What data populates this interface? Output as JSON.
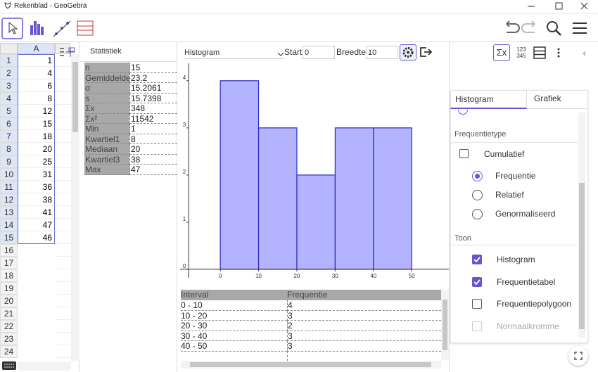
{
  "window": {
    "title": "Rekenblad - GeoGebra"
  },
  "spreadsheet": {
    "column": "A",
    "row_numbers": [
      1,
      2,
      3,
      4,
      5,
      6,
      7,
      8,
      9,
      10,
      11,
      12,
      13,
      14,
      15,
      16,
      17,
      18,
      19,
      20,
      21,
      22,
      23,
      24
    ],
    "values": [
      1,
      4,
      6,
      8,
      12,
      15,
      18,
      20,
      25,
      31,
      36,
      38,
      41,
      47,
      46
    ]
  },
  "statistics": {
    "title": "Statistiek",
    "rows": [
      [
        "n",
        15
      ],
      [
        "Gemiddelde",
        23.2
      ],
      [
        "σ",
        15.2061
      ],
      [
        "s",
        15.7398
      ],
      [
        "Σx",
        348
      ],
      [
        "Σx²",
        11542
      ],
      [
        "Min",
        1
      ],
      [
        "Kwartiel1",
        8
      ],
      [
        "Mediaan",
        20
      ],
      [
        "Kwartiel3",
        38
      ],
      [
        "Max",
        47
      ]
    ]
  },
  "toolbar": {
    "plot_type": "Histogram",
    "start_label": "Start",
    "start": 0,
    "width_label": "Breedte",
    "width": 10
  },
  "chart_data": {
    "type": "histogram",
    "bins": [
      0,
      10,
      20,
      30,
      40,
      50
    ],
    "values": [
      4,
      3,
      2,
      3,
      3
    ],
    "color": "#b3b3ff",
    "edge_color": "#2b2bc4",
    "xlim": [
      -10.5,
      59.7
    ],
    "ylim": [
      -0.18,
      4.37
    ],
    "xticks": [
      0,
      10,
      20,
      30,
      40,
      50
    ],
    "yticks": [
      0,
      1,
      2,
      3,
      4
    ]
  },
  "frequency_table": {
    "headers": [
      "Interval",
      "Frequentie"
    ],
    "rows": [
      [
        "0 - 10",
        4
      ],
      [
        "10 - 20",
        3
      ],
      [
        "20 - 30",
        2
      ],
      [
        "30 - 40",
        3
      ],
      [
        "40 - 50",
        3
      ]
    ]
  },
  "settings": {
    "tabs": [
      "Histogram",
      "Grafiek"
    ],
    "frequency_type_heading": "Frequentietype",
    "cumulative": "Cumulatief",
    "frequency_types": [
      "Frequentie",
      "Relatief",
      "Genormaliseerd"
    ],
    "show_heading": "Toon",
    "show_options": [
      "Histogram",
      "Frequentietabel",
      "Frequentiepolygoon",
      "Normaalkromme"
    ],
    "icon_label": "123\n345"
  }
}
